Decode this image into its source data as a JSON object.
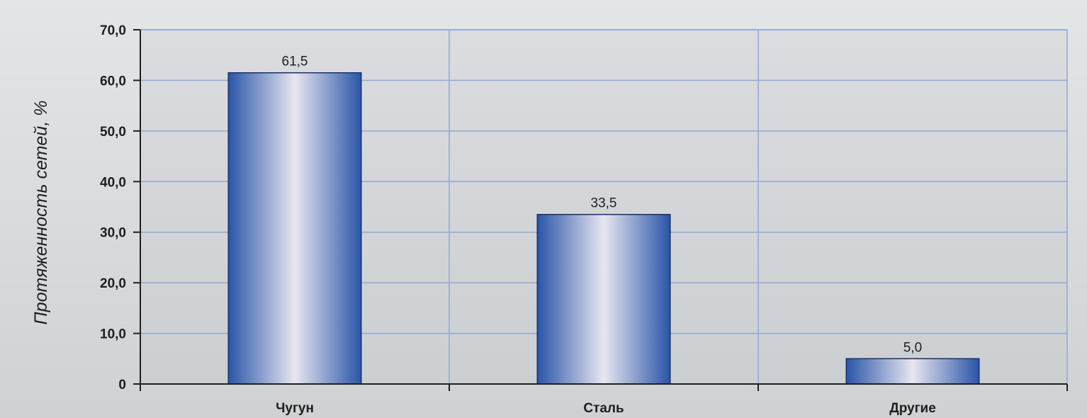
{
  "chart_data": {
    "type": "bar",
    "categories": [
      "Чугун",
      "Сталь",
      "Другие"
    ],
    "values": [
      61.5,
      33.5,
      5.0
    ],
    "value_labels": [
      "61,5",
      "33,5",
      "5,0"
    ],
    "title": "",
    "xlabel": "",
    "ylabel": "Протяженность сетей,  %",
    "ylim": [
      0,
      70
    ],
    "yticks": [
      0,
      10,
      20,
      30,
      40,
      50,
      60,
      70
    ],
    "ytick_labels": [
      "0",
      "10,0",
      "20,0",
      "30,0",
      "40,0",
      "50,0",
      "60,0",
      "70,0"
    ],
    "grid": true,
    "legend": "none",
    "colors": {
      "bar_dark": "#2a55a8",
      "bar_light": "#e8e6f0",
      "plot_bg": "#d4d7da",
      "grid": "#8fa8d6",
      "axis": "#202020"
    }
  }
}
